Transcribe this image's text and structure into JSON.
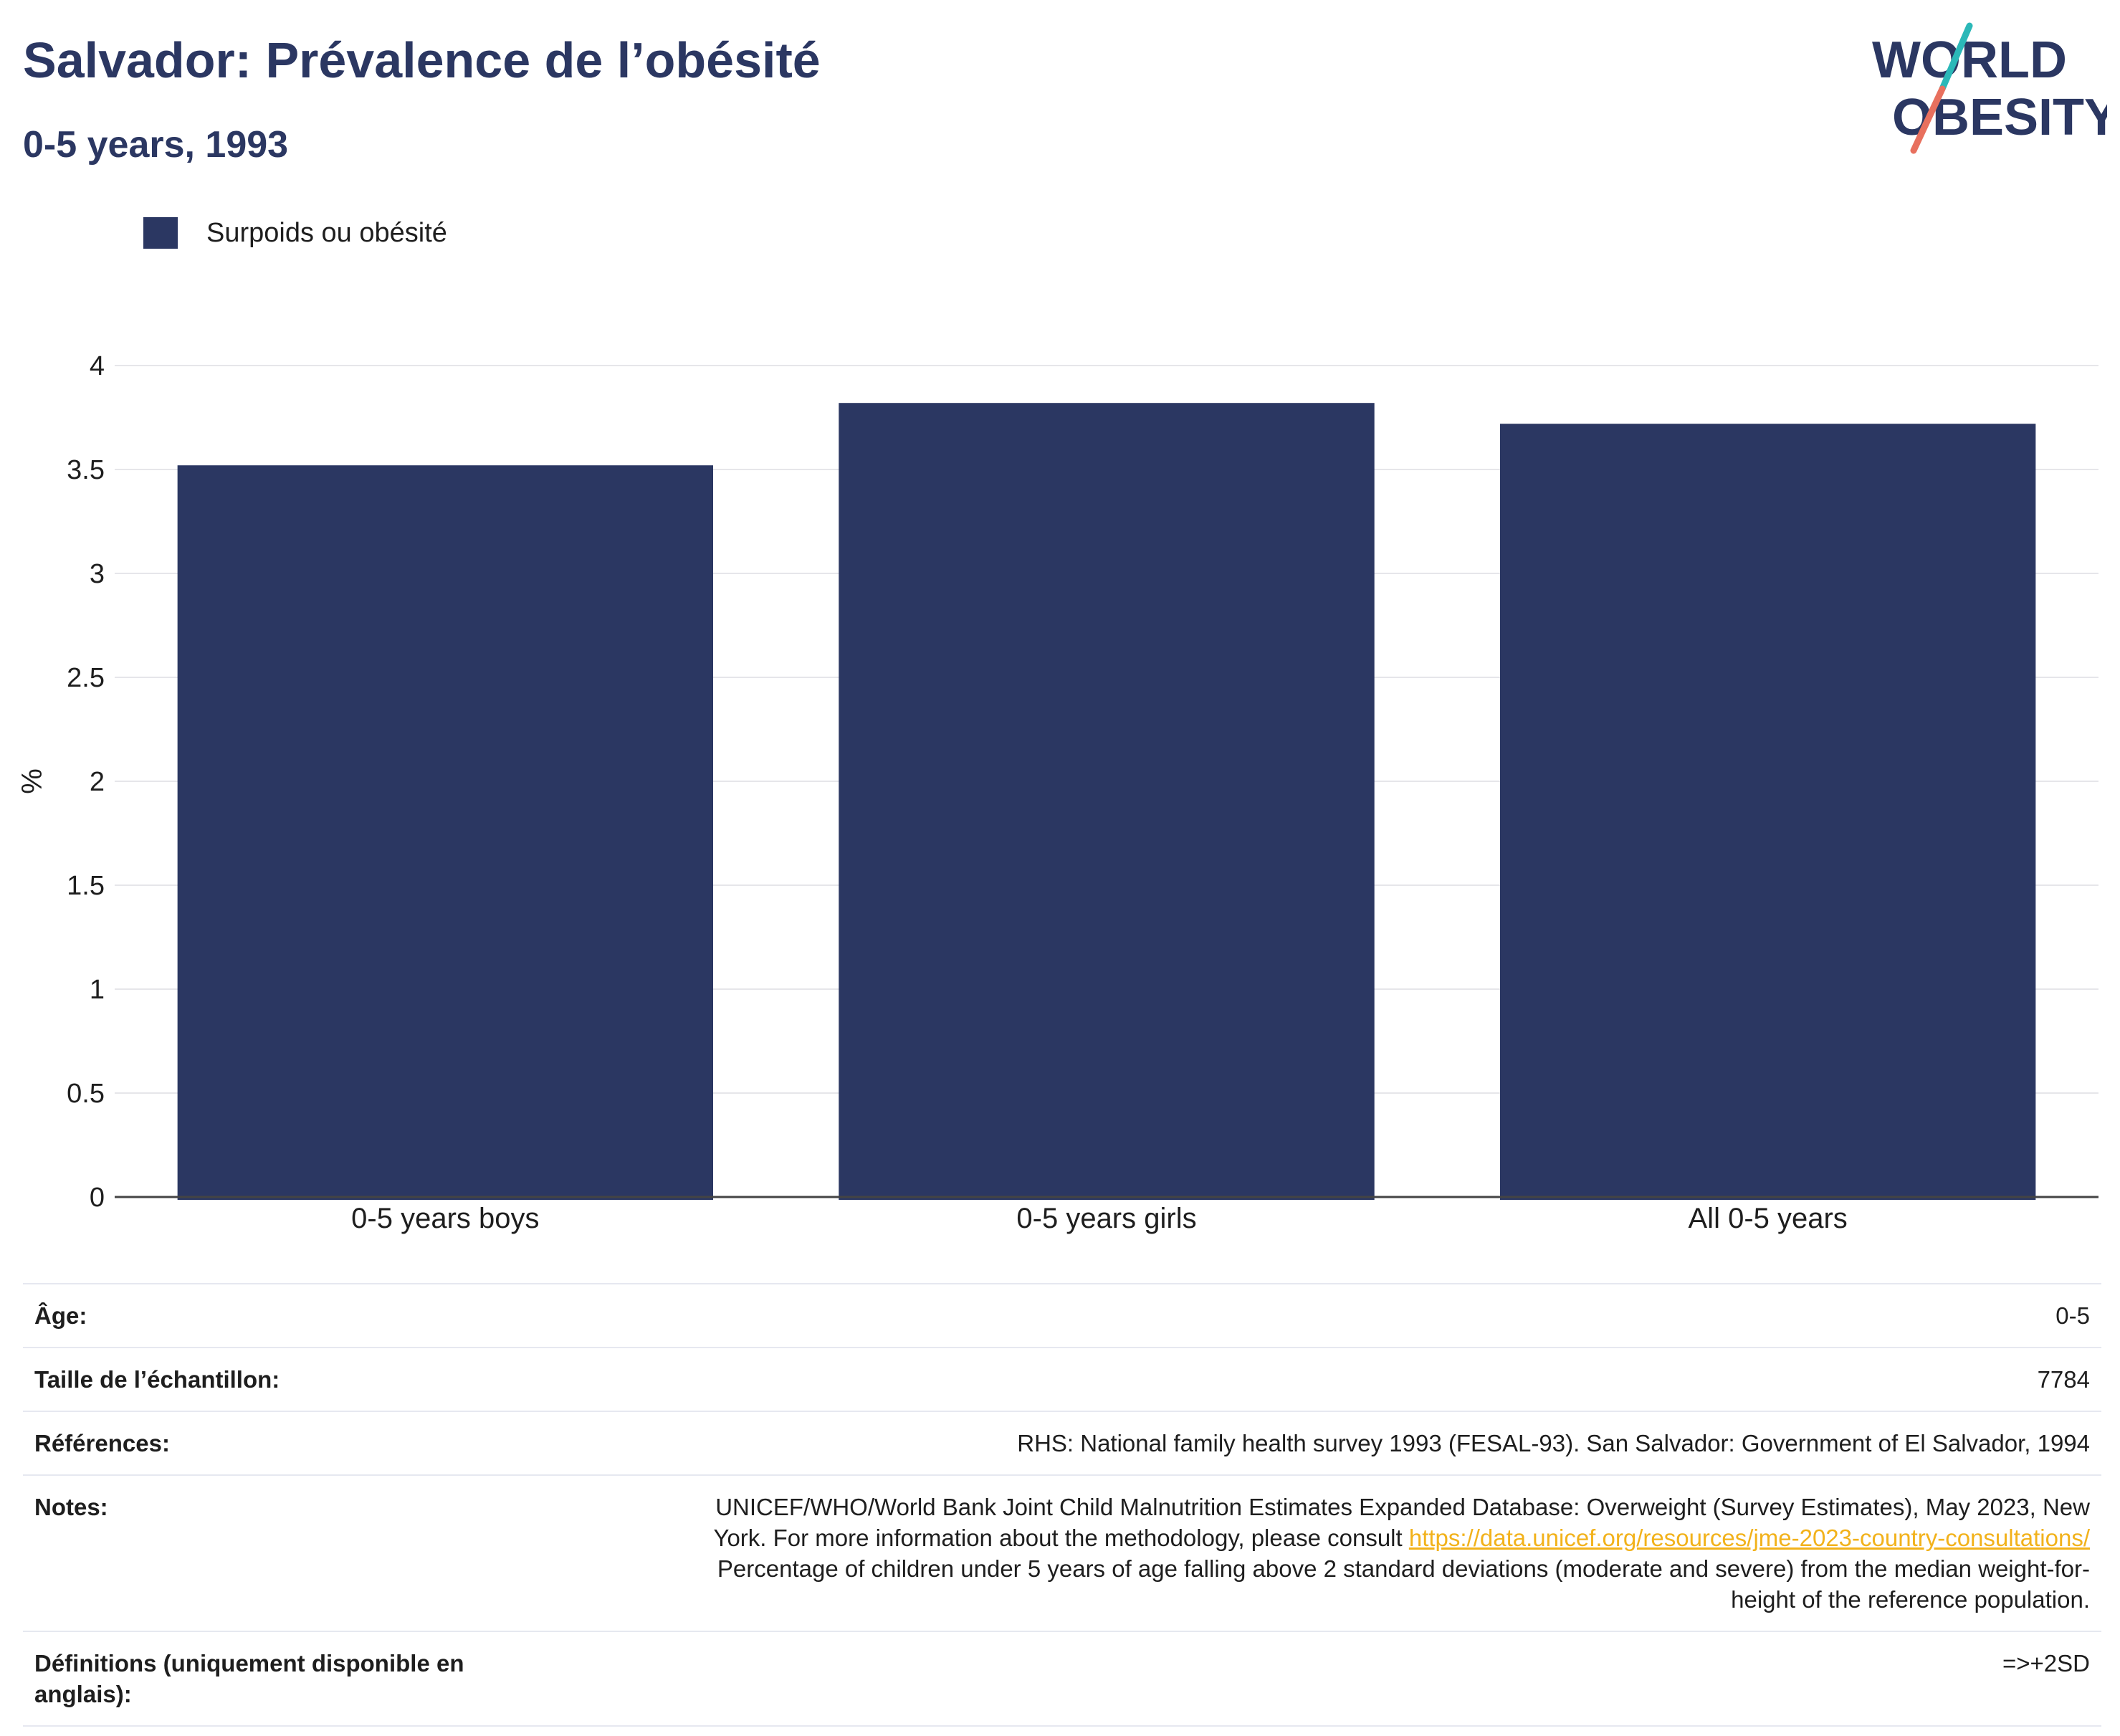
{
  "header": {
    "title": "Salvador: Prévalence de l’obésité",
    "subtitle": "0-5 years, 1993"
  },
  "logo": {
    "line1": "WORLD",
    "line2": "OBESITY",
    "colors": {
      "text": "#2b3762",
      "teal": "#2bb8b8",
      "coral": "#e8705e"
    }
  },
  "colors": {
    "bar": "#2b3762",
    "grid": "#e6e6ea",
    "axis": "#444444",
    "link": "#f2b21b"
  },
  "chart_data": {
    "type": "bar",
    "categories": [
      "0-5 years boys",
      "0-5 years girls",
      "All 0-5 years"
    ],
    "series": [
      {
        "name": "Surpoids ou obésité",
        "values": [
          3.52,
          3.82,
          3.72
        ],
        "color": "#2b3762"
      }
    ],
    "title": "",
    "xlabel": "",
    "ylabel": "%",
    "ylim": [
      0,
      4
    ],
    "yticks": [
      0,
      0.5,
      1,
      1.5,
      2,
      2.5,
      3,
      3.5,
      4
    ],
    "ytick_labels": [
      "0",
      "0.5",
      "1",
      "1.5",
      "2",
      "2.5",
      "3",
      "3.5",
      "4"
    ],
    "grid": true,
    "legend_position": "top-left"
  },
  "info": {
    "age": {
      "label": "Âge:",
      "value": "0-5"
    },
    "sample": {
      "label": "Taille de l’échantillon:",
      "value": "7784"
    },
    "references": {
      "label": "Références:",
      "value": "RHS: National family health survey 1993 (FESAL-93). San Salvador: Government of El Salvador, 1994"
    },
    "notes": {
      "label": "Notes:",
      "line1": "UNICEF/WHO/World Bank Joint Child Malnutrition Estimates Expanded Database: Overweight (Survey Estimates), May 2023, New",
      "line2_prefix": "York. For more information about the methodology, please consult ",
      "link": "https://data.unicef.org/resources/jme-2023-country-consultations/",
      "line3": "Percentage of children under 5 years of age falling above 2 standard deviations (moderate and severe) from the median weight-for-",
      "line4": "height of the reference population."
    },
    "definitions": {
      "label_line1": "Définitions (uniquement disponible en",
      "label_line2": "anglais):",
      "value": "=>+2SD"
    }
  }
}
